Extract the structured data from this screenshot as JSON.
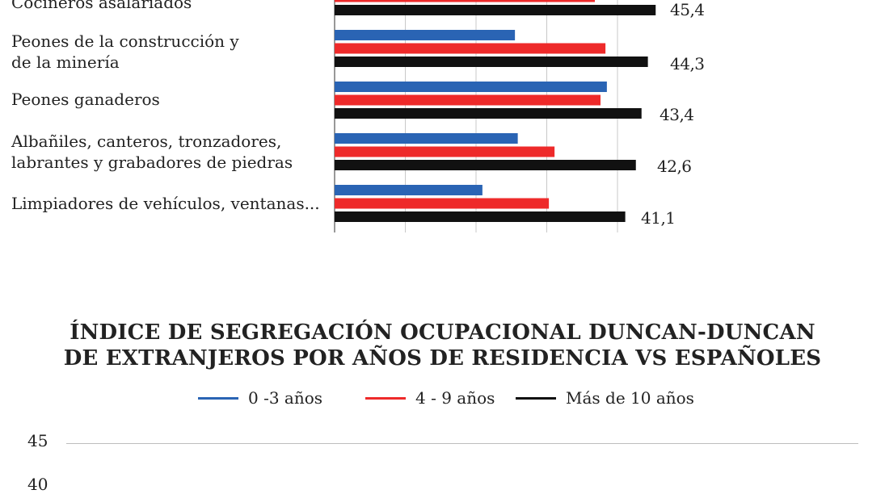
{
  "chart_data": [
    {
      "type": "bar",
      "orientation": "horizontal",
      "categories": [
        "Cocineros asalariados",
        "Peones de la construcción y\nde la minería",
        "Peones ganaderos",
        "Albañiles, canteros, tronzadores,\nlabrantes y grabadores de piedras",
        "Limpiadores de vehículos, ventanas..."
      ],
      "series": [
        {
          "key": "s0",
          "color": "#2a64b4",
          "values": [
            null,
            25.5,
            38.5,
            25.9,
            20.9
          ]
        },
        {
          "key": "s1",
          "color": "#ee2a2a",
          "values": [
            36.8,
            38.3,
            37.6,
            31.1,
            30.3
          ]
        },
        {
          "key": "s2",
          "color": "#111111",
          "values": [
            45.4,
            44.3,
            43.4,
            42.6,
            41.1
          ]
        }
      ],
      "value_labels": [
        "45,4",
        "44,3",
        "43,4",
        "42,6",
        "41,1"
      ],
      "xlim": [
        0,
        50
      ],
      "grid": true
    },
    {
      "type": "line",
      "title_line1": "ÍNDICE DE SEGREGACIÓN OCUPACIONAL DUNCAN-DUNCAN",
      "title_line2": "DE EXTRANJEROS POR AÑOS DE RESIDENCIA VS ESPAÑOLES",
      "legend": [
        {
          "name": "0 -3 años",
          "color": "#2a64b4"
        },
        {
          "name": "4 - 9 años",
          "color": "#ee2a2a"
        },
        {
          "name": "Más de 10 años",
          "color": "#111111"
        }
      ],
      "y_ticks": [
        "45",
        "40"
      ],
      "ylim_visible": [
        40,
        45
      ]
    }
  ]
}
